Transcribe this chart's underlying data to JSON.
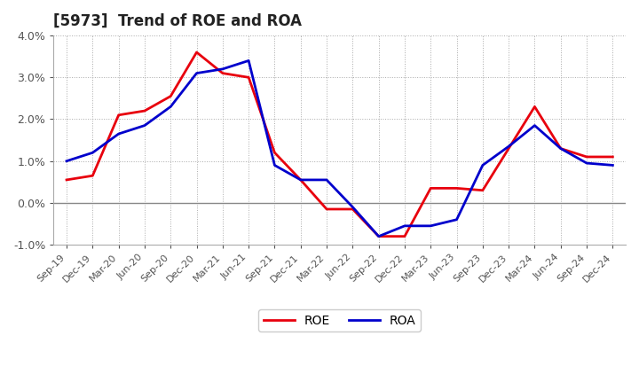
{
  "title": "[5973]  Trend of ROE and ROA",
  "labels": [
    "Sep-19",
    "Dec-19",
    "Mar-20",
    "Jun-20",
    "Sep-20",
    "Dec-20",
    "Mar-21",
    "Jun-21",
    "Sep-21",
    "Dec-21",
    "Mar-22",
    "Jun-22",
    "Sep-22",
    "Dec-22",
    "Mar-23",
    "Jun-23",
    "Sep-23",
    "Dec-23",
    "Mar-24",
    "Jun-24",
    "Sep-24",
    "Dec-24"
  ],
  "ROE": [
    0.0055,
    0.0065,
    0.021,
    0.022,
    0.0255,
    0.036,
    0.031,
    0.03,
    0.012,
    0.0055,
    -0.0015,
    -0.0015,
    -0.008,
    -0.008,
    0.0035,
    0.0035,
    0.003,
    0.013,
    0.023,
    0.013,
    0.011,
    0.011
  ],
  "ROA": [
    0.01,
    0.012,
    0.0165,
    0.0185,
    0.023,
    0.031,
    0.032,
    0.034,
    0.009,
    0.0055,
    0.0055,
    -0.001,
    -0.008,
    -0.0055,
    -0.0055,
    -0.004,
    0.009,
    0.0135,
    0.0185,
    0.013,
    0.0095,
    0.009
  ],
  "roe_color": "#e8000d",
  "roa_color": "#0000cc",
  "linewidth": 2.0,
  "ylim": [
    -0.01,
    0.04
  ],
  "yticks": [
    -0.01,
    0.0,
    0.01,
    0.02,
    0.03,
    0.04
  ],
  "ytick_labels": [
    "-1.0%",
    "0.0%",
    "1.0%",
    "2.0%",
    "3.0%",
    "4.0%"
  ],
  "background_color": "#ffffff",
  "grid_color": "#aaaaaa",
  "zero_line_color": "#888888"
}
